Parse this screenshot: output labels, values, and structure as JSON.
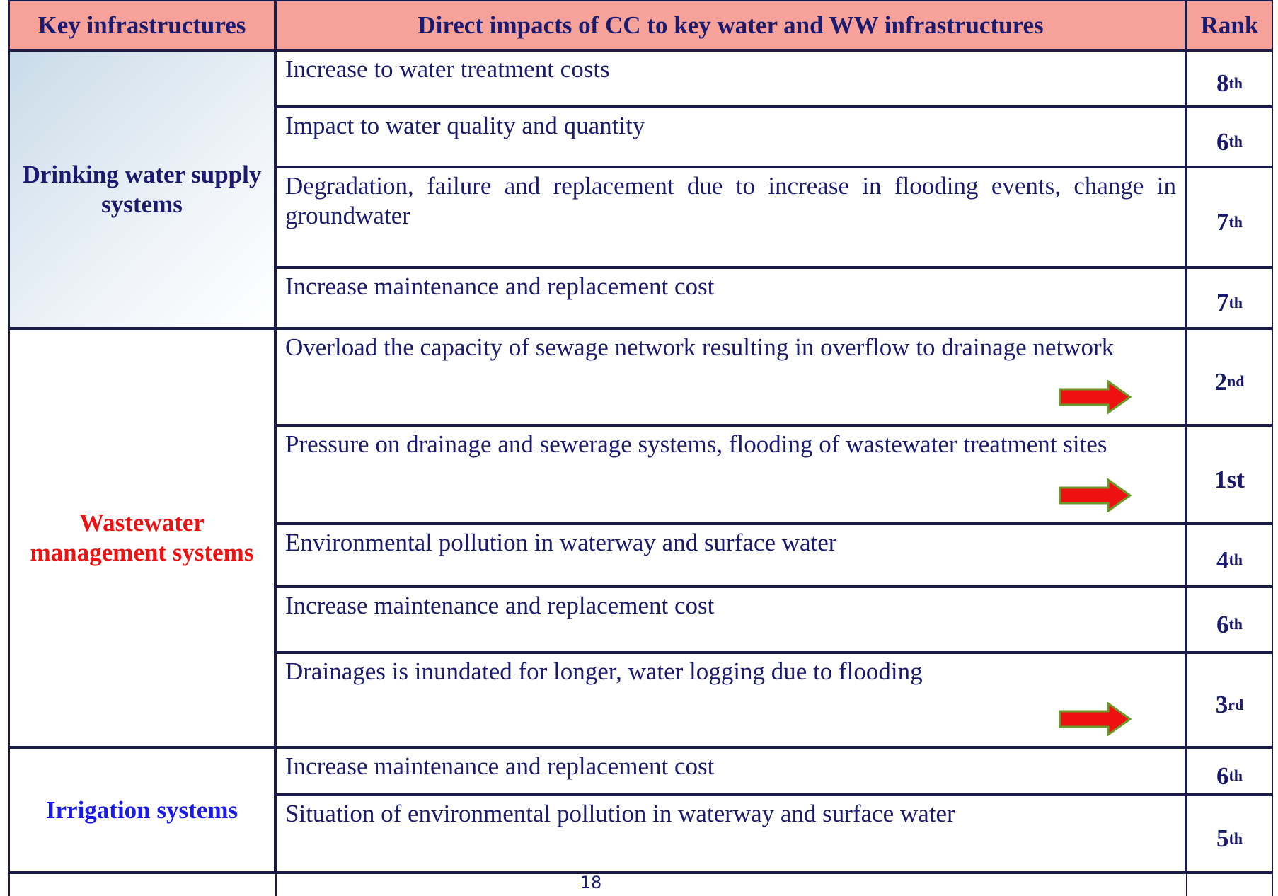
{
  "table": {
    "header": [
      "Key infrastructures",
      "Direct impacts of CC to key water and WW infrastructures",
      "Rank"
    ],
    "groups": [
      {
        "name": "Drinking water supply systems",
        "color": "#1a1a6e",
        "rows": [
          {
            "impact": "Increase to water treatment costs",
            "rank": {
              "text": "8",
              "sup": "th"
            }
          },
          {
            "impact": "Impact to water quality and quantity",
            "rank": {
              "text": "6",
              "sup": "th"
            }
          },
          {
            "impact": "Degradation, failure and replacement due to increase in flooding events, change in groundwater",
            "rank": {
              "text": "7",
              "sup": "th"
            }
          },
          {
            "impact": "Increase maintenance and replacement cost",
            "rank": {
              "text": "7",
              "sup": "th"
            }
          }
        ]
      },
      {
        "name": "Wastewater management systems",
        "color": "#ee1111",
        "rows": [
          {
            "impact": "Overload the capacity of sewage network resulting in overflow to drainage network",
            "rank": {
              "text": "2",
              "sup": "nd"
            },
            "arrow": true
          },
          {
            "impact": "Pressure on drainage and sewerage systems, flooding of wastewater treatment sites",
            "rank": {
              "text": "1st"
            },
            "arrow": true
          },
          {
            "impact": "Environmental pollution in waterway and surface water",
            "rank": {
              "text": "4",
              "sup": "th"
            }
          },
          {
            "impact": "Increase maintenance and replacement cost",
            "rank": {
              "text": "6",
              "sup": "th"
            }
          },
          {
            "impact": "Drainages is inundated for longer, water logging due to flooding",
            "rank": {
              "text": "3",
              "sup": "rd"
            },
            "arrow": true
          }
        ]
      },
      {
        "name": "Irrigation systems",
        "color": "#1a1aee",
        "rows": [
          {
            "impact": "Increase maintenance and replacement cost",
            "rank": {
              "text": "6",
              "sup": "th"
            }
          },
          {
            "impact": "Situation of  environmental pollution in waterway and surface water",
            "rank": {
              "text": "5",
              "sup": "th"
            }
          }
        ]
      }
    ],
    "page_number": "18"
  }
}
